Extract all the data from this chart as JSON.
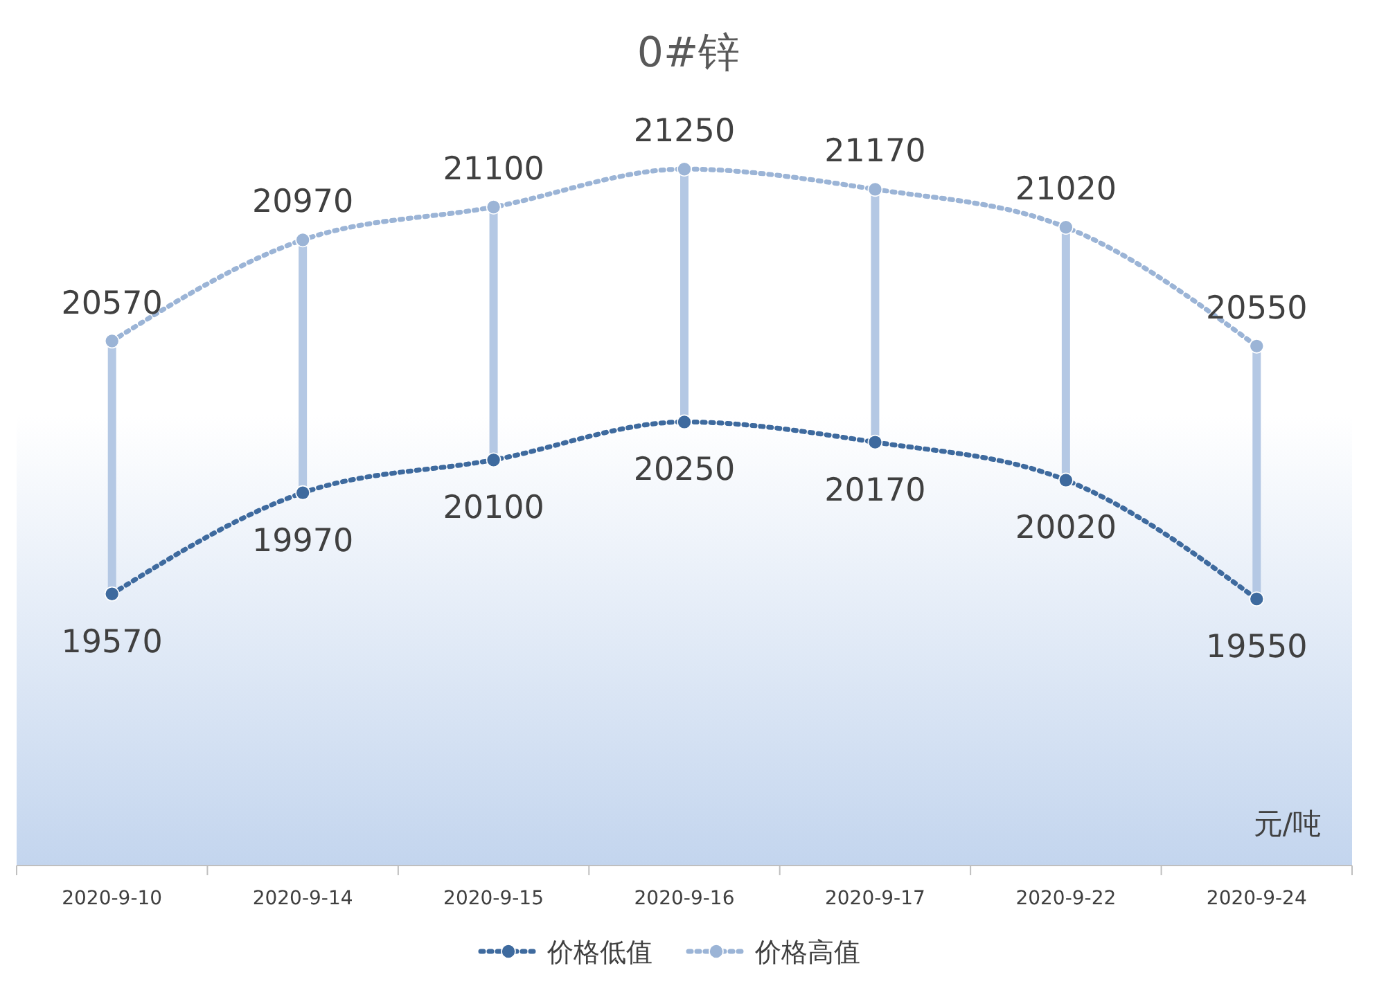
{
  "chart_data": {
    "type": "line",
    "title": "0#锌",
    "annotations": [
      "元/吨"
    ],
    "categories": [
      "2020-9-10",
      "2020-9-14",
      "2020-9-15",
      "2020-9-16",
      "2020-9-17",
      "2020-9-22",
      "2020-9-24"
    ],
    "series": [
      {
        "name": "价格低值",
        "color": "#3e6a9e",
        "values": [
          19570,
          19970,
          20100,
          20250,
          20170,
          20020,
          19550
        ]
      },
      {
        "name": "价格高值",
        "color": "#9bb4d6",
        "values": [
          20570,
          20970,
          21100,
          21250,
          21170,
          21020,
          20550
        ]
      }
    ],
    "relative": false,
    "data_labels": true,
    "marker": "circle",
    "line_style": "dotted",
    "legend": "bottom",
    "grid": false
  }
}
